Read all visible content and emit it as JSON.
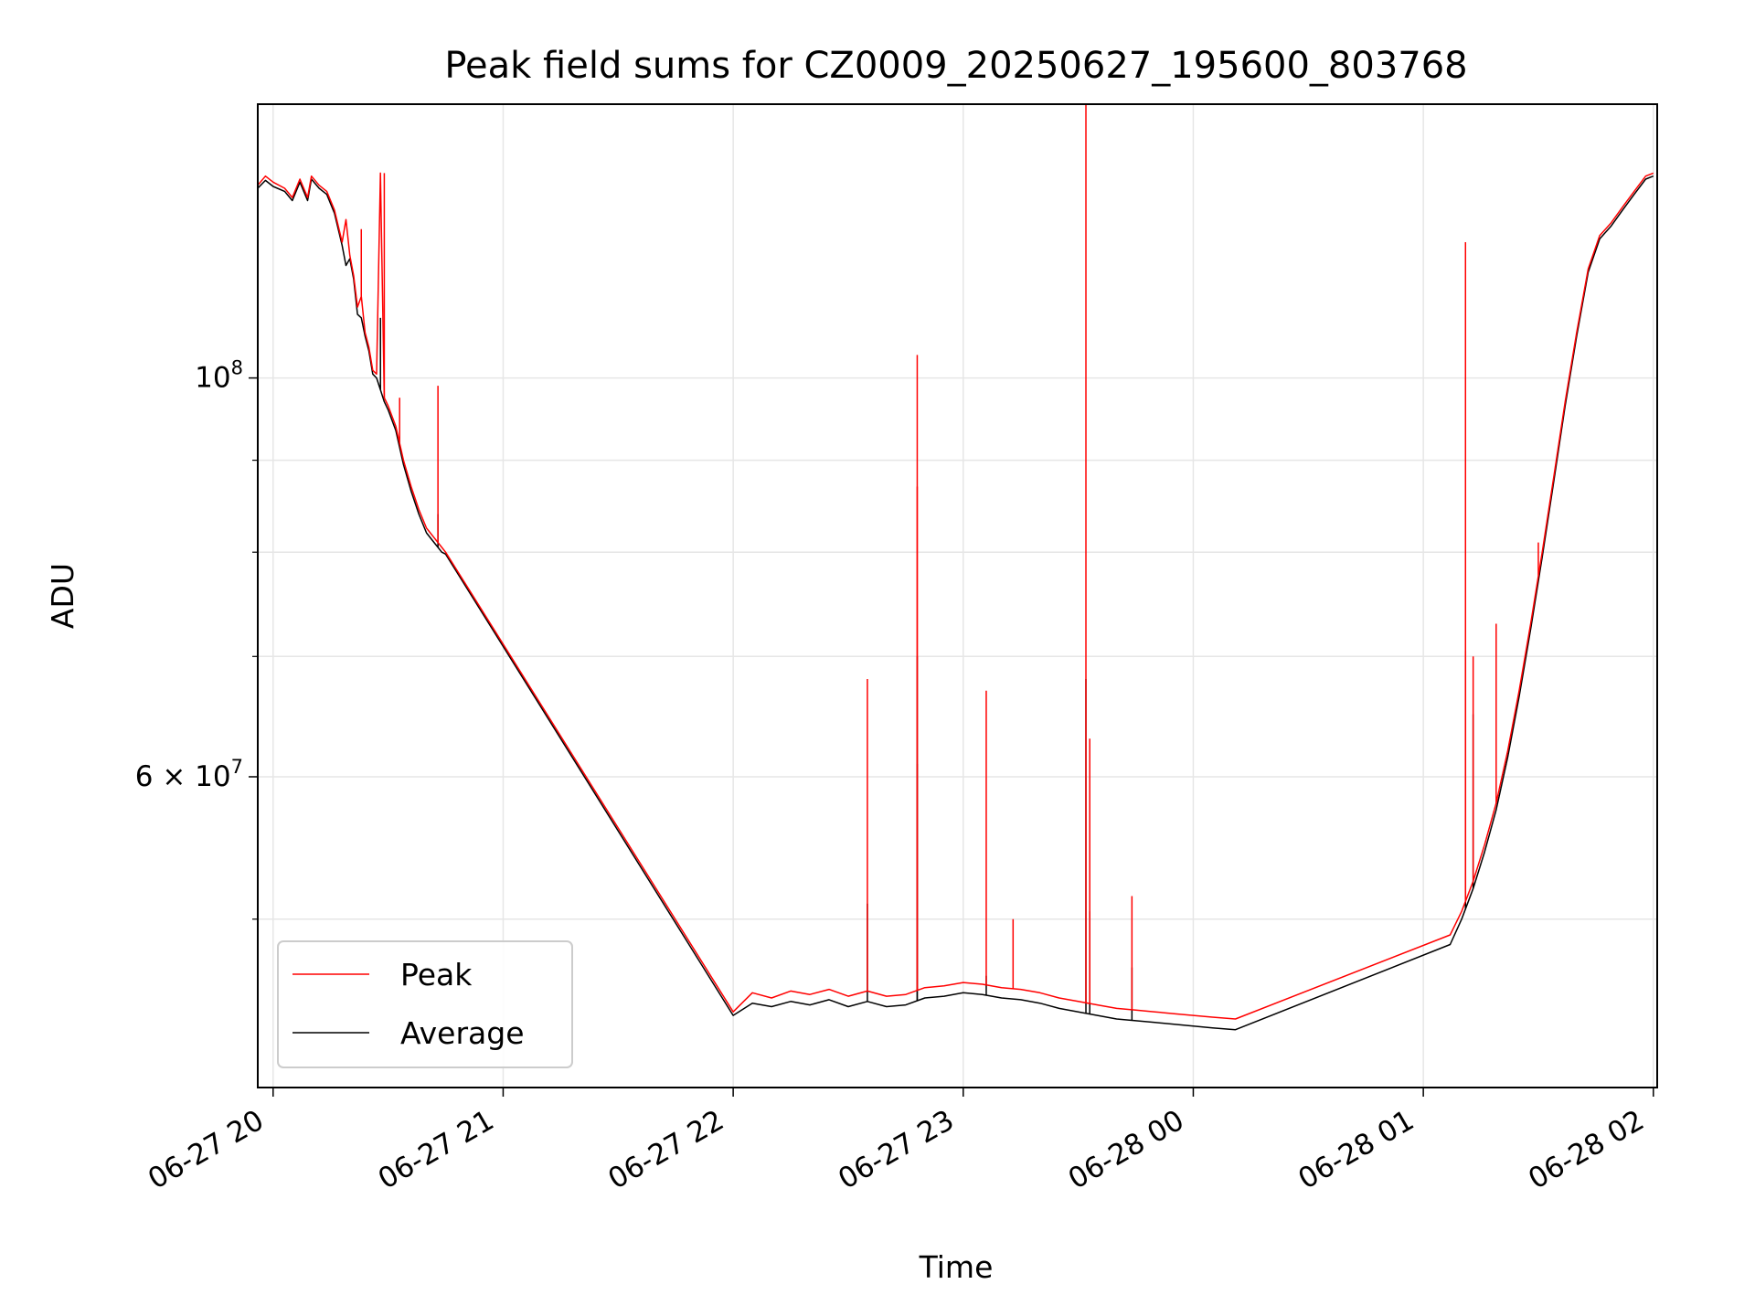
{
  "chart_data": {
    "type": "line",
    "title": "Peak field sums for CZ0009_20250627_195600_803768",
    "xlabel": "Time",
    "ylabel": "ADU",
    "x_scale": "time",
    "y_scale": "log",
    "xlim": [
      "2025-06-27T19:56",
      "2025-06-28T02:01"
    ],
    "ylim": [
      40300000,
      142000000
    ],
    "grid": true,
    "legend": "lower-left",
    "x_ticks": [
      {
        "t": "2025-06-27T20:00",
        "label": "06-27 20"
      },
      {
        "t": "2025-06-27T21:00",
        "label": "06-27 21"
      },
      {
        "t": "2025-06-27T22:00",
        "label": "06-27 22"
      },
      {
        "t": "2025-06-27T23:00",
        "label": "06-27 23"
      },
      {
        "t": "2025-06-28T00:00",
        "label": "06-28 00"
      },
      {
        "t": "2025-06-28T01:00",
        "label": "06-28 01"
      },
      {
        "t": "2025-06-28T02:00",
        "label": "06-28 02"
      }
    ],
    "y_ticks": [
      {
        "v": 100000000,
        "mantissa": "",
        "base": "10",
        "exp": "8"
      },
      {
        "v": 60000000,
        "mantissa": "6 × ",
        "base": "10",
        "exp": "7"
      }
    ],
    "y_minor_ticks": [
      50000000,
      70000000,
      80000000,
      90000000
    ],
    "series": [
      {
        "name": "Peak",
        "color": "#ff0000",
        "points": [
          [
            "2025-06-27T19:56",
            128000000
          ],
          [
            "2025-06-27T19:58",
            129500000
          ],
          [
            "2025-06-27T20:00",
            128500000
          ],
          [
            "2025-06-27T20:03",
            127500000
          ],
          [
            "2025-06-27T20:05",
            126000000
          ],
          [
            "2025-06-27T20:07",
            129000000
          ],
          [
            "2025-06-27T20:09",
            126000000
          ],
          [
            "2025-06-27T20:10",
            129500000
          ],
          [
            "2025-06-27T20:12",
            128000000
          ],
          [
            "2025-06-27T20:14",
            127000000
          ],
          [
            "2025-06-27T20:16",
            124000000
          ],
          [
            "2025-06-27T20:18",
            119000000
          ],
          [
            "2025-06-27T20:19",
            122500000
          ],
          [
            "2025-06-27T20:20",
            117000000
          ],
          [
            "2025-06-27T20:21",
            114000000
          ],
          [
            "2025-06-27T20:22",
            109500000
          ],
          [
            "2025-06-27T20:23",
            111000000
          ],
          [
            "2025-06-27T20:24",
            106000000
          ],
          [
            "2025-06-27T20:25",
            104000000
          ],
          [
            "2025-06-27T20:26",
            101000000
          ],
          [
            "2025-06-27T20:27",
            100500000
          ],
          [
            "2025-06-27T20:28",
            130000000
          ],
          [
            "2025-06-27T20:29",
            97500000
          ],
          [
            "2025-06-27T20:30",
            96500000
          ],
          [
            "2025-06-27T20:32",
            94000000
          ],
          [
            "2025-06-27T20:34",
            90000000
          ],
          [
            "2025-06-27T20:36",
            87000000
          ],
          [
            "2025-06-27T20:38",
            84500000
          ],
          [
            "2025-06-27T20:40",
            82500000
          ],
          [
            "2025-06-27T20:42",
            81500000
          ],
          [
            "2025-06-27T20:43",
            81000000
          ],
          [
            "2025-06-27T20:44",
            80500000
          ],
          [
            "2025-06-27T20:45",
            80000000
          ],
          [
            "2025-06-27T22:00",
            44400000
          ],
          [
            "2025-06-27T22:05",
            45500000
          ],
          [
            "2025-06-27T22:10",
            45200000
          ],
          [
            "2025-06-27T22:15",
            45600000
          ],
          [
            "2025-06-27T22:20",
            45400000
          ],
          [
            "2025-06-27T22:25",
            45700000
          ],
          [
            "2025-06-27T22:30",
            45300000
          ],
          [
            "2025-06-27T22:35",
            45600000
          ],
          [
            "2025-06-27T22:40",
            45300000
          ],
          [
            "2025-06-27T22:45",
            45400000
          ],
          [
            "2025-06-27T22:50",
            45800000
          ],
          [
            "2025-06-27T22:55",
            45900000
          ],
          [
            "2025-06-27T23:00",
            46100000
          ],
          [
            "2025-06-27T23:05",
            46000000
          ],
          [
            "2025-06-27T23:10",
            45800000
          ],
          [
            "2025-06-27T23:15",
            45700000
          ],
          [
            "2025-06-27T23:20",
            45500000
          ],
          [
            "2025-06-27T23:25",
            45200000
          ],
          [
            "2025-06-27T23:30",
            45000000
          ],
          [
            "2025-06-27T23:35",
            44800000
          ],
          [
            "2025-06-27T23:40",
            44600000
          ],
          [
            "2025-06-27T23:45",
            44500000
          ],
          [
            "2025-06-27T23:50",
            44400000
          ],
          [
            "2025-06-27T23:55",
            44300000
          ],
          [
            "2025-06-28T00:00",
            44200000
          ],
          [
            "2025-06-28T00:05",
            44100000
          ],
          [
            "2025-06-28T00:11",
            44000000
          ],
          [
            "2025-06-28T01:07",
            49000000
          ],
          [
            "2025-06-28T01:10",
            50500000
          ],
          [
            "2025-06-28T01:13",
            52500000
          ],
          [
            "2025-06-28T01:16",
            55000000
          ],
          [
            "2025-06-28T01:19",
            58000000
          ],
          [
            "2025-06-28T01:22",
            62000000
          ],
          [
            "2025-06-28T01:25",
            67000000
          ],
          [
            "2025-06-28T01:28",
            73000000
          ],
          [
            "2025-06-28T01:31",
            80000000
          ],
          [
            "2025-06-28T01:34",
            88000000
          ],
          [
            "2025-06-28T01:37",
            97000000
          ],
          [
            "2025-06-28T01:40",
            106000000
          ],
          [
            "2025-06-28T01:43",
            115000000
          ],
          [
            "2025-06-28T01:46",
            120000000
          ],
          [
            "2025-06-28T01:49",
            122000000
          ],
          [
            "2025-06-28T01:52",
            124500000
          ],
          [
            "2025-06-28T01:55",
            127000000
          ],
          [
            "2025-06-28T01:58",
            129500000
          ],
          [
            "2025-06-28T02:00",
            130000000
          ]
        ],
        "spikes": [
          [
            "2025-06-27T20:19",
            122500000
          ],
          [
            "2025-06-27T20:23",
            121000000
          ],
          [
            "2025-06-27T20:29",
            130000000
          ],
          [
            "2025-06-27T20:33",
            97500000
          ],
          [
            "2025-06-27T20:43",
            99000000
          ],
          [
            "2025-06-27T22:35",
            68000000
          ],
          [
            "2025-06-27T22:48",
            103000000
          ],
          [
            "2025-06-27T22:48",
            87000000
          ],
          [
            "2025-06-27T23:06",
            67000000
          ],
          [
            "2025-06-27T23:13",
            50000000
          ],
          [
            "2025-06-27T23:32",
            142000000
          ],
          [
            "2025-06-27T23:33",
            63000000
          ],
          [
            "2025-06-27T23:44",
            51500000
          ],
          [
            "2025-06-28T01:11",
            119000000
          ],
          [
            "2025-06-28T01:13",
            70000000
          ],
          [
            "2025-06-28T01:19",
            73000000
          ],
          [
            "2025-06-28T01:30",
            81000000
          ]
        ]
      },
      {
        "name": "Average",
        "color": "#000000",
        "points": [
          [
            "2025-06-27T19:56",
            127500000
          ],
          [
            "2025-06-27T19:58",
            128800000
          ],
          [
            "2025-06-27T20:00",
            127800000
          ],
          [
            "2025-06-27T20:03",
            127000000
          ],
          [
            "2025-06-27T20:05",
            125500000
          ],
          [
            "2025-06-27T20:07",
            128500000
          ],
          [
            "2025-06-27T20:09",
            125500000
          ],
          [
            "2025-06-27T20:10",
            129000000
          ],
          [
            "2025-06-27T20:12",
            127500000
          ],
          [
            "2025-06-27T20:14",
            126500000
          ],
          [
            "2025-06-27T20:16",
            123500000
          ],
          [
            "2025-06-27T20:18",
            118500000
          ],
          [
            "2025-06-27T20:19",
            115500000
          ],
          [
            "2025-06-27T20:20",
            116500000
          ],
          [
            "2025-06-27T20:21",
            113500000
          ],
          [
            "2025-06-27T20:22",
            108500000
          ],
          [
            "2025-06-27T20:23",
            108000000
          ],
          [
            "2025-06-27T20:24",
            105500000
          ],
          [
            "2025-06-27T20:25",
            103500000
          ],
          [
            "2025-06-27T20:26",
            100500000
          ],
          [
            "2025-06-27T20:27",
            100000000
          ],
          [
            "2025-06-27T20:28",
            98500000
          ],
          [
            "2025-06-27T20:29",
            97000000
          ],
          [
            "2025-06-27T20:30",
            96000000
          ],
          [
            "2025-06-27T20:32",
            93500000
          ],
          [
            "2025-06-27T20:34",
            89500000
          ],
          [
            "2025-06-27T20:36",
            86500000
          ],
          [
            "2025-06-27T20:38",
            84000000
          ],
          [
            "2025-06-27T20:40",
            82000000
          ],
          [
            "2025-06-27T20:42",
            81000000
          ],
          [
            "2025-06-27T20:43",
            80500000
          ],
          [
            "2025-06-27T20:44",
            80000000
          ],
          [
            "2025-06-27T20:45",
            79800000
          ],
          [
            "2025-06-27T22:00",
            44200000
          ],
          [
            "2025-06-27T22:05",
            44900000
          ],
          [
            "2025-06-27T22:10",
            44700000
          ],
          [
            "2025-06-27T22:15",
            45000000
          ],
          [
            "2025-06-27T22:20",
            44800000
          ],
          [
            "2025-06-27T22:25",
            45100000
          ],
          [
            "2025-06-27T22:30",
            44700000
          ],
          [
            "2025-06-27T22:35",
            45000000
          ],
          [
            "2025-06-27T22:40",
            44700000
          ],
          [
            "2025-06-27T22:45",
            44800000
          ],
          [
            "2025-06-27T22:50",
            45200000
          ],
          [
            "2025-06-27T22:55",
            45300000
          ],
          [
            "2025-06-27T23:00",
            45500000
          ],
          [
            "2025-06-27T23:05",
            45400000
          ],
          [
            "2025-06-27T23:10",
            45200000
          ],
          [
            "2025-06-27T23:15",
            45100000
          ],
          [
            "2025-06-27T23:20",
            44900000
          ],
          [
            "2025-06-27T23:25",
            44600000
          ],
          [
            "2025-06-27T23:30",
            44400000
          ],
          [
            "2025-06-27T23:35",
            44200000
          ],
          [
            "2025-06-27T23:40",
            44000000
          ],
          [
            "2025-06-27T23:45",
            43900000
          ],
          [
            "2025-06-27T23:50",
            43800000
          ],
          [
            "2025-06-27T23:55",
            43700000
          ],
          [
            "2025-06-28T00:00",
            43600000
          ],
          [
            "2025-06-28T00:05",
            43500000
          ],
          [
            "2025-06-28T00:11",
            43400000
          ],
          [
            "2025-06-28T01:07",
            48400000
          ],
          [
            "2025-06-28T01:10",
            50000000
          ],
          [
            "2025-06-28T01:13",
            52000000
          ],
          [
            "2025-06-28T01:16",
            54500000
          ],
          [
            "2025-06-28T01:19",
            57500000
          ],
          [
            "2025-06-28T01:22",
            61500000
          ],
          [
            "2025-06-28T01:25",
            66500000
          ],
          [
            "2025-06-28T01:28",
            72500000
          ],
          [
            "2025-06-28T01:31",
            79500000
          ],
          [
            "2025-06-28T01:34",
            87500000
          ],
          [
            "2025-06-28T01:37",
            96500000
          ],
          [
            "2025-06-28T01:40",
            105500000
          ],
          [
            "2025-06-28T01:43",
            114500000
          ],
          [
            "2025-06-28T01:46",
            119500000
          ],
          [
            "2025-06-28T01:49",
            121500000
          ],
          [
            "2025-06-28T01:52",
            124000000
          ],
          [
            "2025-06-28T01:55",
            126500000
          ],
          [
            "2025-06-28T01:58",
            129000000
          ],
          [
            "2025-06-28T02:00",
            129500000
          ]
        ],
        "spikes": [
          [
            "2025-06-27T20:28",
            108000000
          ],
          [
            "2025-06-27T20:43",
            84000000
          ],
          [
            "2025-06-27T22:35",
            51000000
          ],
          [
            "2025-06-27T22:48",
            70000000
          ],
          [
            "2025-06-27T22:48",
            61000000
          ],
          [
            "2025-06-27T23:06",
            46500000
          ],
          [
            "2025-06-27T23:32",
            68000000
          ],
          [
            "2025-06-27T23:33",
            50500000
          ],
          [
            "2025-06-27T23:44",
            47000000
          ],
          [
            "2025-06-28T01:11",
            70500000
          ],
          [
            "2025-06-28T01:13",
            65000000
          ]
        ]
      }
    ]
  }
}
